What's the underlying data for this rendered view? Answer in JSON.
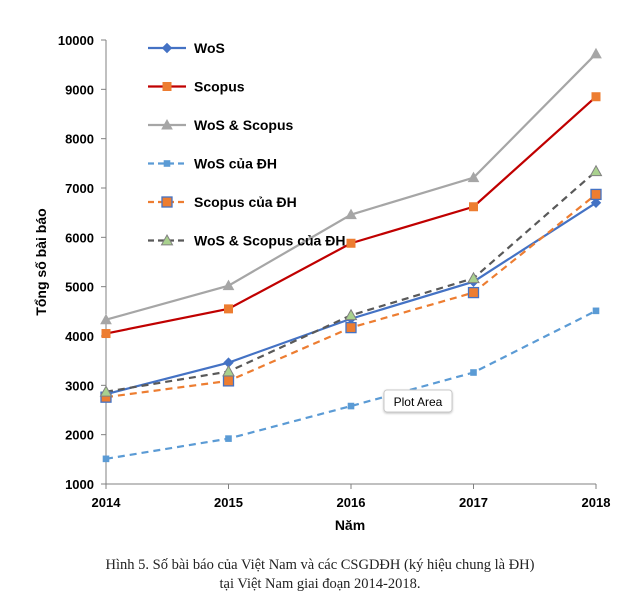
{
  "chart_data": {
    "type": "line",
    "xlabel": "Năm",
    "ylabel": "Tổng số bài báo",
    "ylim": [
      1000,
      10000
    ],
    "yticks": [
      1000,
      2000,
      3000,
      4000,
      5000,
      6000,
      7000,
      8000,
      9000,
      10000
    ],
    "x": [
      "2014",
      "2015",
      "2016",
      "2017",
      "2018"
    ],
    "grid": false,
    "legend_position": "top-left",
    "series": [
      {
        "name": "WoS",
        "values": [
          2820,
          3460,
          4350,
          5100,
          6700
        ],
        "color": "#4472C4",
        "style": "solid",
        "marker": "diamond"
      },
      {
        "name": "Scopus",
        "values": [
          4050,
          4550,
          5880,
          6620,
          8850
        ],
        "color": "#C00000",
        "style": "solid",
        "marker": "square"
      },
      {
        "name": "WoS & Scopus",
        "values": [
          4330,
          5020,
          6460,
          7210,
          9720
        ],
        "color": "#A6A6A6",
        "style": "solid",
        "marker": "triangle"
      },
      {
        "name": "WoS của ĐH",
        "values": [
          1510,
          1920,
          2580,
          3260,
          4510
        ],
        "color": "#5B9BD5",
        "style": "dashed",
        "marker": "small-square"
      },
      {
        "name": "Scopus của ĐH",
        "values": [
          2760,
          3090,
          4170,
          4880,
          6870
        ],
        "color": "#ED7D31",
        "style": "dashed",
        "marker": "square-outlined"
      },
      {
        "name": "WoS & Scopus của ĐH",
        "values": [
          2870,
          3280,
          4420,
          5170,
          7340
        ],
        "color": "#595959",
        "style": "dashed",
        "marker": "triangle-green"
      }
    ],
    "annotation": "Plot Area"
  },
  "caption": {
    "line1": "Hình 5. Số bài báo của Việt Nam và các CSGDĐH (ký hiệu chung là ĐH)",
    "line2": "tại Việt Nam giai đoạn 2014-2018."
  }
}
